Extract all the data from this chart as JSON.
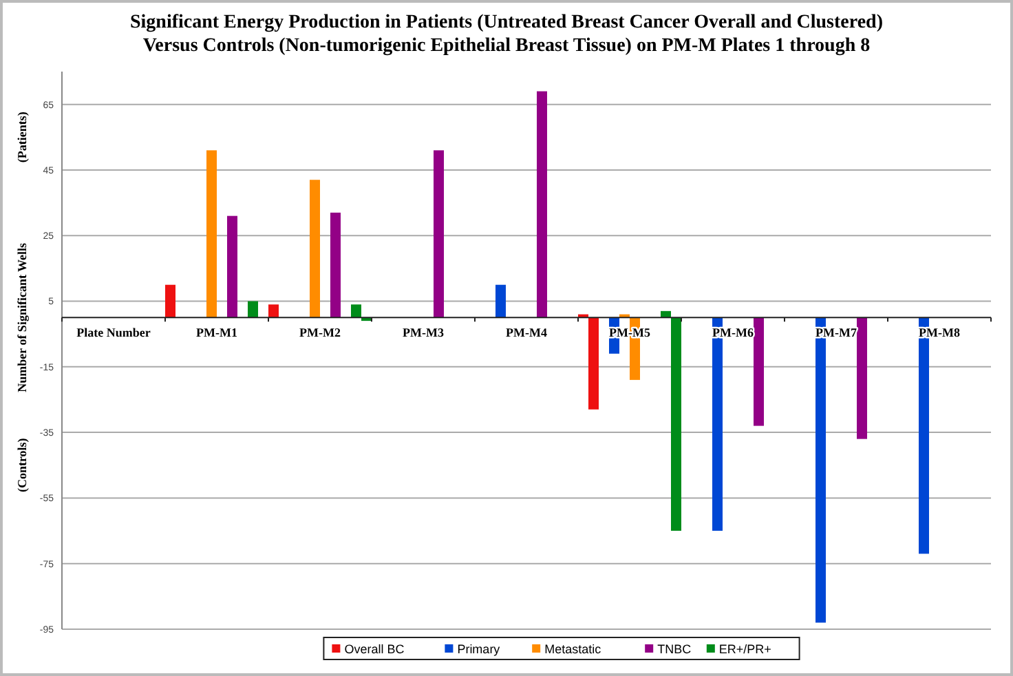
{
  "chart_data": {
    "type": "bar",
    "title": "Significant Energy Production in Patients (Untreated Breast Cancer Overall and Clustered)\nVersus Controls (Non-tumorigenic Epithelial Breast Tissue) on PM-M Plates 1 through 8",
    "ylabel": "Number of Significant Wells",
    "annotations": [
      "(Patients)",
      "(Controls)"
    ],
    "categories": [
      "Plate Number",
      "PM-M1",
      "PM-M2",
      "PM-M3",
      "PM-M4",
      "PM-M5",
      "PM-M6",
      "PM-M7",
      "PM-M8"
    ],
    "series": [
      {
        "name": "Overall BC",
        "color": "#ee1111",
        "values": [
          null,
          10,
          4,
          null,
          null,
          1,
          null,
          null,
          null
        ]
      },
      {
        "color": "#ee1111",
        "values": [
          null,
          null,
          null,
          null,
          null,
          -28,
          null,
          null,
          null
        ]
      },
      {
        "name": "Primary",
        "color": "#0047d4",
        "values": [
          null,
          null,
          null,
          null,
          10,
          null,
          null,
          null,
          null
        ]
      },
      {
        "color": "#0047d4",
        "values": [
          null,
          null,
          null,
          null,
          null,
          -11,
          -65,
          -93,
          -72
        ]
      },
      {
        "name": "Metastatic",
        "color": "#ff8c00",
        "values": [
          null,
          51,
          42,
          null,
          null,
          1,
          null,
          null,
          null
        ]
      },
      {
        "color": "#ff8c00",
        "values": [
          null,
          null,
          null,
          null,
          null,
          -19,
          null,
          null,
          null
        ]
      },
      {
        "name": "TNBC",
        "color": "#930086",
        "values": [
          null,
          31,
          32,
          51,
          69,
          null,
          null,
          null,
          null
        ]
      },
      {
        "color": "#930086",
        "values": [
          null,
          null,
          null,
          null,
          null,
          null,
          -33,
          -37,
          null
        ]
      },
      {
        "name": "ER+/PR+",
        "color": "#008c1a",
        "values": [
          null,
          5,
          4,
          null,
          null,
          2,
          null,
          null,
          null
        ]
      },
      {
        "color": "#008c1a",
        "values": [
          null,
          null,
          -1,
          null,
          null,
          -65,
          null,
          null,
          null
        ]
      }
    ],
    "ylim": [
      -95,
      75
    ],
    "yticks": [
      -95,
      -75,
      -55,
      -35,
      -15,
      5,
      25,
      45,
      65
    ],
    "grid": "y",
    "legend": "bottom"
  }
}
